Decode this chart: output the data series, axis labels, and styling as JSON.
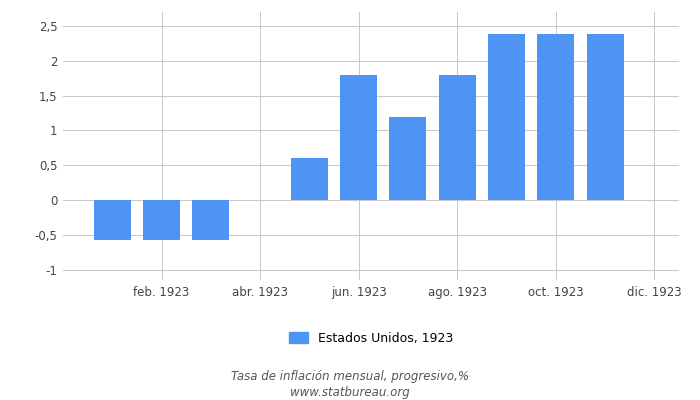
{
  "bar_positions": [
    1,
    2,
    3,
    5,
    6,
    7,
    8,
    9,
    10,
    11
  ],
  "bar_values": [
    -0.58,
    -0.58,
    -0.58,
    0.6,
    1.8,
    1.19,
    1.8,
    2.38,
    2.38,
    2.38
  ],
  "bar_color": "#4d94f5",
  "bar_width": 0.75,
  "xtick_positions": [
    2,
    4,
    6,
    8,
    10,
    12
  ],
  "xtick_labels": [
    "feb. 1923",
    "abr. 1923",
    "jun. 1923",
    "ago. 1923",
    "oct. 1923",
    "dic. 1923"
  ],
  "xlim": [
    0.0,
    12.5
  ],
  "yticks": [
    -1.0,
    -0.5,
    0.0,
    0.5,
    1.0,
    1.5,
    2.0,
    2.5
  ],
  "ytick_labels": [
    "-1",
    "-0,5",
    "0",
    "0,5",
    "1",
    "1,5",
    "2",
    "2,5"
  ],
  "ylim": [
    -1.15,
    2.7
  ],
  "legend_label": "Estados Unidos, 1923",
  "footer_line1": "Tasa de inflación mensual, progresivo,%",
  "footer_line2": "www.statbureau.org",
  "background_color": "#ffffff",
  "grid_color": "#c8c8c8"
}
